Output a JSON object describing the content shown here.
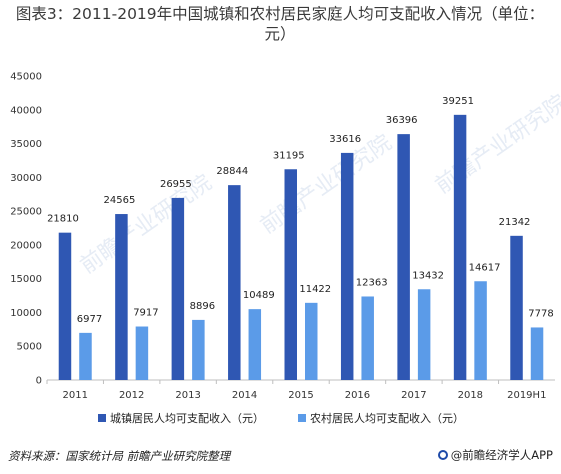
{
  "title": "图表3：2011-2019年中国城镇和农村居民家庭人均可支配收入情况（单位：元）",
  "source": "资料来源：国家统计局 前瞻产业研究院整理",
  "logo_text": "@前瞻经济学人APP",
  "watermark": "前瞻产业研究院",
  "colors": {
    "urban": "#2F57B3",
    "rural": "#5B9BE8",
    "axis": "#bfbfbf"
  },
  "chart_data": {
    "type": "bar",
    "categories": [
      "2011",
      "2012",
      "2013",
      "2014",
      "2015",
      "2016",
      "2017",
      "2018",
      "2019H1"
    ],
    "series": [
      {
        "name": "城镇居民人均可支配收入（元）",
        "values": [
          21810,
          24565,
          26955,
          28844,
          31195,
          33616,
          36396,
          39251,
          21342
        ]
      },
      {
        "name": "农村居民人均可支配收入（元）",
        "values": [
          6977,
          7917,
          8896,
          10489,
          11422,
          12363,
          13432,
          14617,
          7778
        ]
      }
    ],
    "yticks": [
      0,
      5000,
      10000,
      15000,
      20000,
      25000,
      30000,
      35000,
      40000,
      45000
    ],
    "ylim": [
      0,
      45000
    ],
    "legend": "bottom"
  }
}
